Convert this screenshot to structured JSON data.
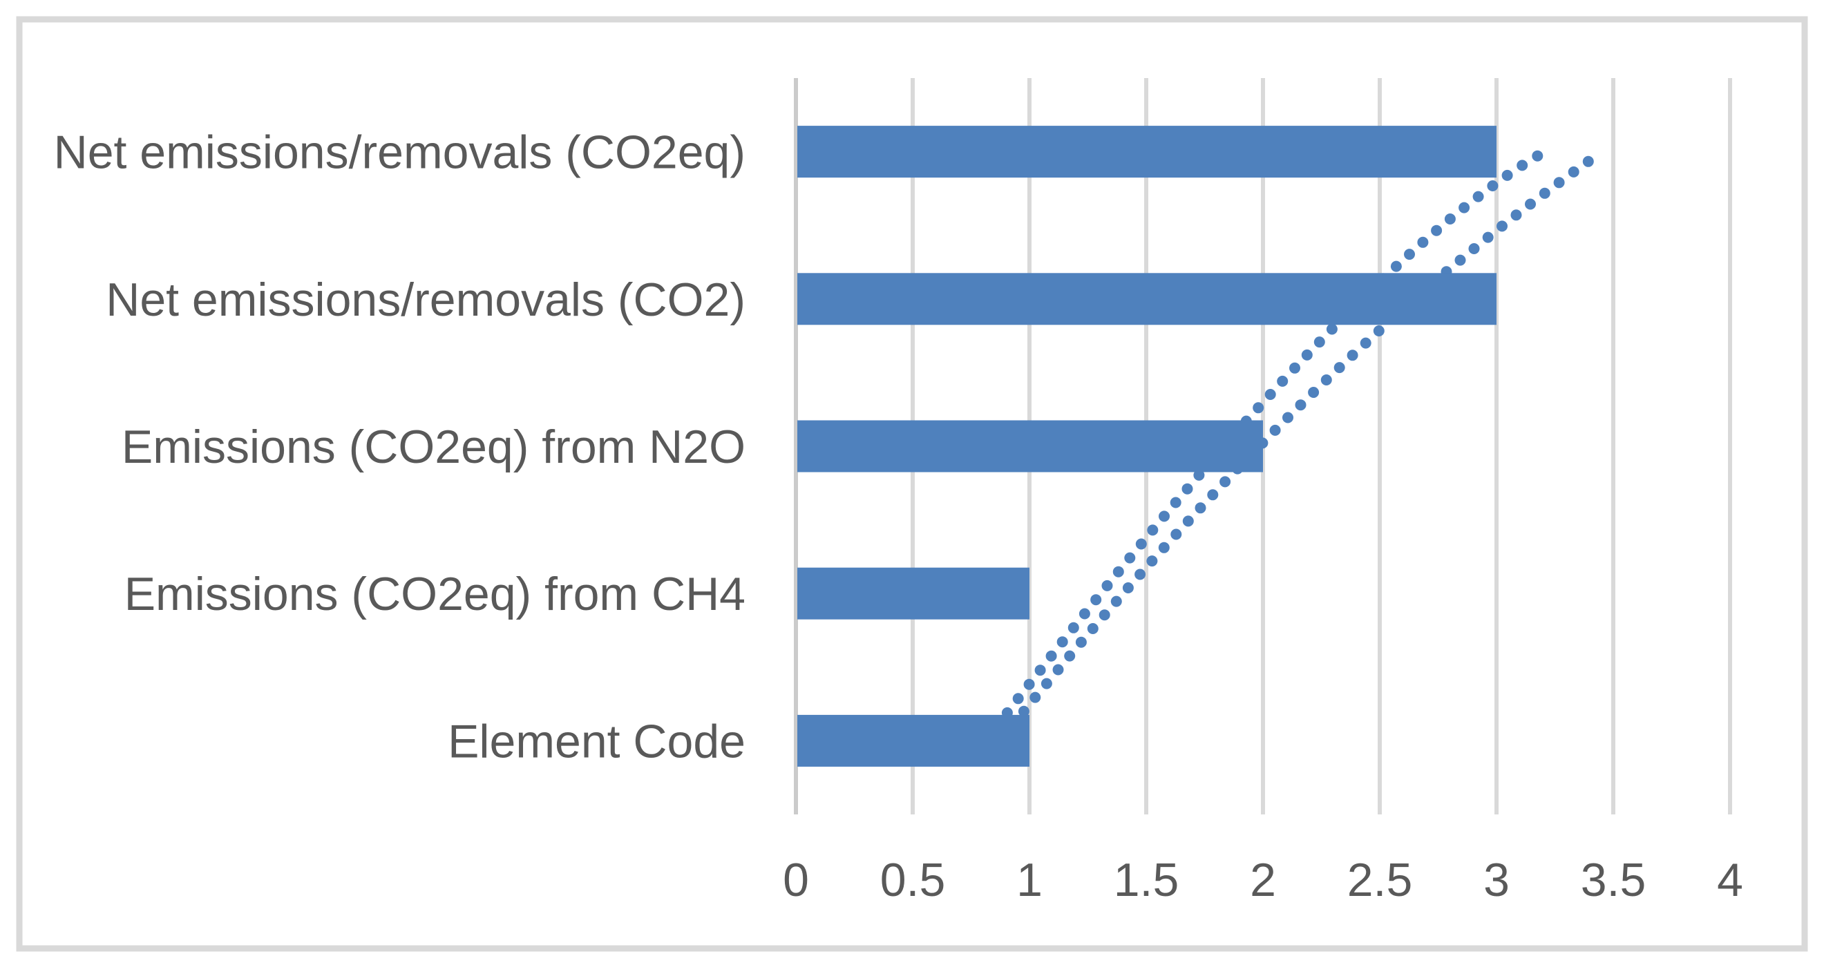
{
  "chart_data": {
    "type": "bar",
    "orientation": "horizontal",
    "title": "",
    "categories": [
      "Net emissions/removals (CO2eq)",
      "Net emissions/removals (CO2)",
      "Emissions (CO2eq) from N2O",
      "Emissions (CO2eq) from CH4",
      "Element Code"
    ],
    "values": [
      3,
      3,
      2,
      1,
      1
    ],
    "xlim": [
      0,
      4
    ],
    "xticks": [
      0,
      0.5,
      1,
      1.5,
      2,
      2.5,
      3,
      3.5,
      4
    ],
    "xtick_labels": [
      "0",
      "0.5",
      "1",
      "1.5",
      "2",
      "2.5",
      "3",
      "3.5",
      "4"
    ],
    "xlabel": "",
    "ylabel": "",
    "grid": true,
    "legend": false,
    "bar_color": "#4f81bd",
    "trendlines": [
      {
        "name": "dotted-trendline-1",
        "style": "dotted",
        "color": "#4f81bd",
        "comment": "quadratic control points in [x-value, category-row] space; row 0 = top category",
        "points_value_row": [
          [
            0.905,
            3.81
          ],
          [
            2.376,
            0.77
          ],
          [
            3.195,
            0.01
          ]
        ]
      },
      {
        "name": "dotted-trendline-2",
        "style": "dotted",
        "color": "#4f81bd",
        "points_value_row": [
          [
            0.976,
            3.8
          ],
          [
            2.24,
            1.337
          ],
          [
            3.444,
            0.01
          ]
        ]
      }
    ]
  },
  "style": {
    "background": "#ffffff",
    "border_color": "#d9d9d9",
    "grid_color": "#d9d9d9",
    "axis_line_color": "#cbcbcb",
    "text_color": "#595959"
  }
}
